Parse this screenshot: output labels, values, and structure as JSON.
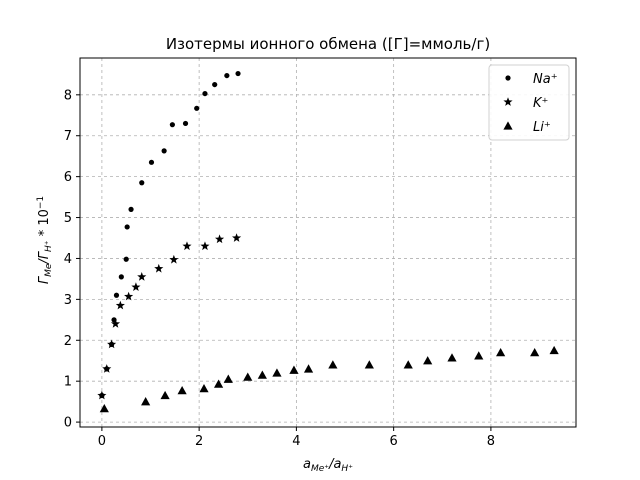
{
  "chart_data": {
    "type": "scatter",
    "title": "Изотермы ионного обмена ([Г]=ммоль/г)",
    "xlabel": "a_{Me⁺}/a_{H⁺}",
    "ylabel": "Г_{Me}/Г_{H⁺} * 10⁻¹",
    "xlim": [
      -0.45,
      9.75
    ],
    "ylim": [
      -0.12,
      8.9
    ],
    "x_ticks": [
      0,
      2,
      4,
      6,
      8
    ],
    "y_ticks": [
      0,
      1,
      2,
      3,
      4,
      5,
      6,
      7,
      8
    ],
    "grid": true,
    "legend_position": "top-right",
    "series": [
      {
        "name": "Na⁺",
        "marker": "circle",
        "color": "#000000",
        "points": [
          [
            0.0,
            0.65
          ],
          [
            0.1,
            1.3
          ],
          [
            0.2,
            1.9
          ],
          [
            0.25,
            2.5
          ],
          [
            0.3,
            3.1
          ],
          [
            0.4,
            3.55
          ],
          [
            0.5,
            3.98
          ],
          [
            0.52,
            4.77
          ],
          [
            0.6,
            5.2
          ],
          [
            0.82,
            5.85
          ],
          [
            1.02,
            6.35
          ],
          [
            1.28,
            6.63
          ],
          [
            1.45,
            7.27
          ],
          [
            1.72,
            7.3
          ],
          [
            1.95,
            7.67
          ],
          [
            2.12,
            8.03
          ],
          [
            2.32,
            8.25
          ],
          [
            2.57,
            8.47
          ],
          [
            2.8,
            8.52
          ]
        ]
      },
      {
        "name": "K⁺",
        "marker": "star",
        "color": "#000000",
        "points": [
          [
            0.0,
            0.65
          ],
          [
            0.1,
            1.3
          ],
          [
            0.2,
            1.9
          ],
          [
            0.28,
            2.4
          ],
          [
            0.38,
            2.85
          ],
          [
            0.55,
            3.07
          ],
          [
            0.7,
            3.3
          ],
          [
            0.82,
            3.55
          ],
          [
            1.17,
            3.75
          ],
          [
            1.48,
            3.97
          ],
          [
            1.75,
            4.3
          ],
          [
            2.12,
            4.3
          ],
          [
            2.42,
            4.47
          ],
          [
            2.77,
            4.5
          ]
        ]
      },
      {
        "name": "Li⁺",
        "marker": "triangle",
        "color": "#000000",
        "points": [
          [
            0.05,
            0.33
          ],
          [
            0.9,
            0.5
          ],
          [
            1.3,
            0.65
          ],
          [
            1.65,
            0.77
          ],
          [
            2.1,
            0.82
          ],
          [
            2.4,
            0.93
          ],
          [
            2.6,
            1.05
          ],
          [
            3.0,
            1.1
          ],
          [
            3.3,
            1.15
          ],
          [
            3.6,
            1.2
          ],
          [
            3.95,
            1.27
          ],
          [
            4.25,
            1.3
          ],
          [
            4.75,
            1.4
          ],
          [
            5.5,
            1.4
          ],
          [
            6.3,
            1.4
          ],
          [
            6.7,
            1.5
          ],
          [
            7.2,
            1.57
          ],
          [
            7.75,
            1.62
          ],
          [
            8.2,
            1.7
          ],
          [
            8.9,
            1.7
          ],
          [
            9.3,
            1.75
          ]
        ]
      }
    ]
  }
}
